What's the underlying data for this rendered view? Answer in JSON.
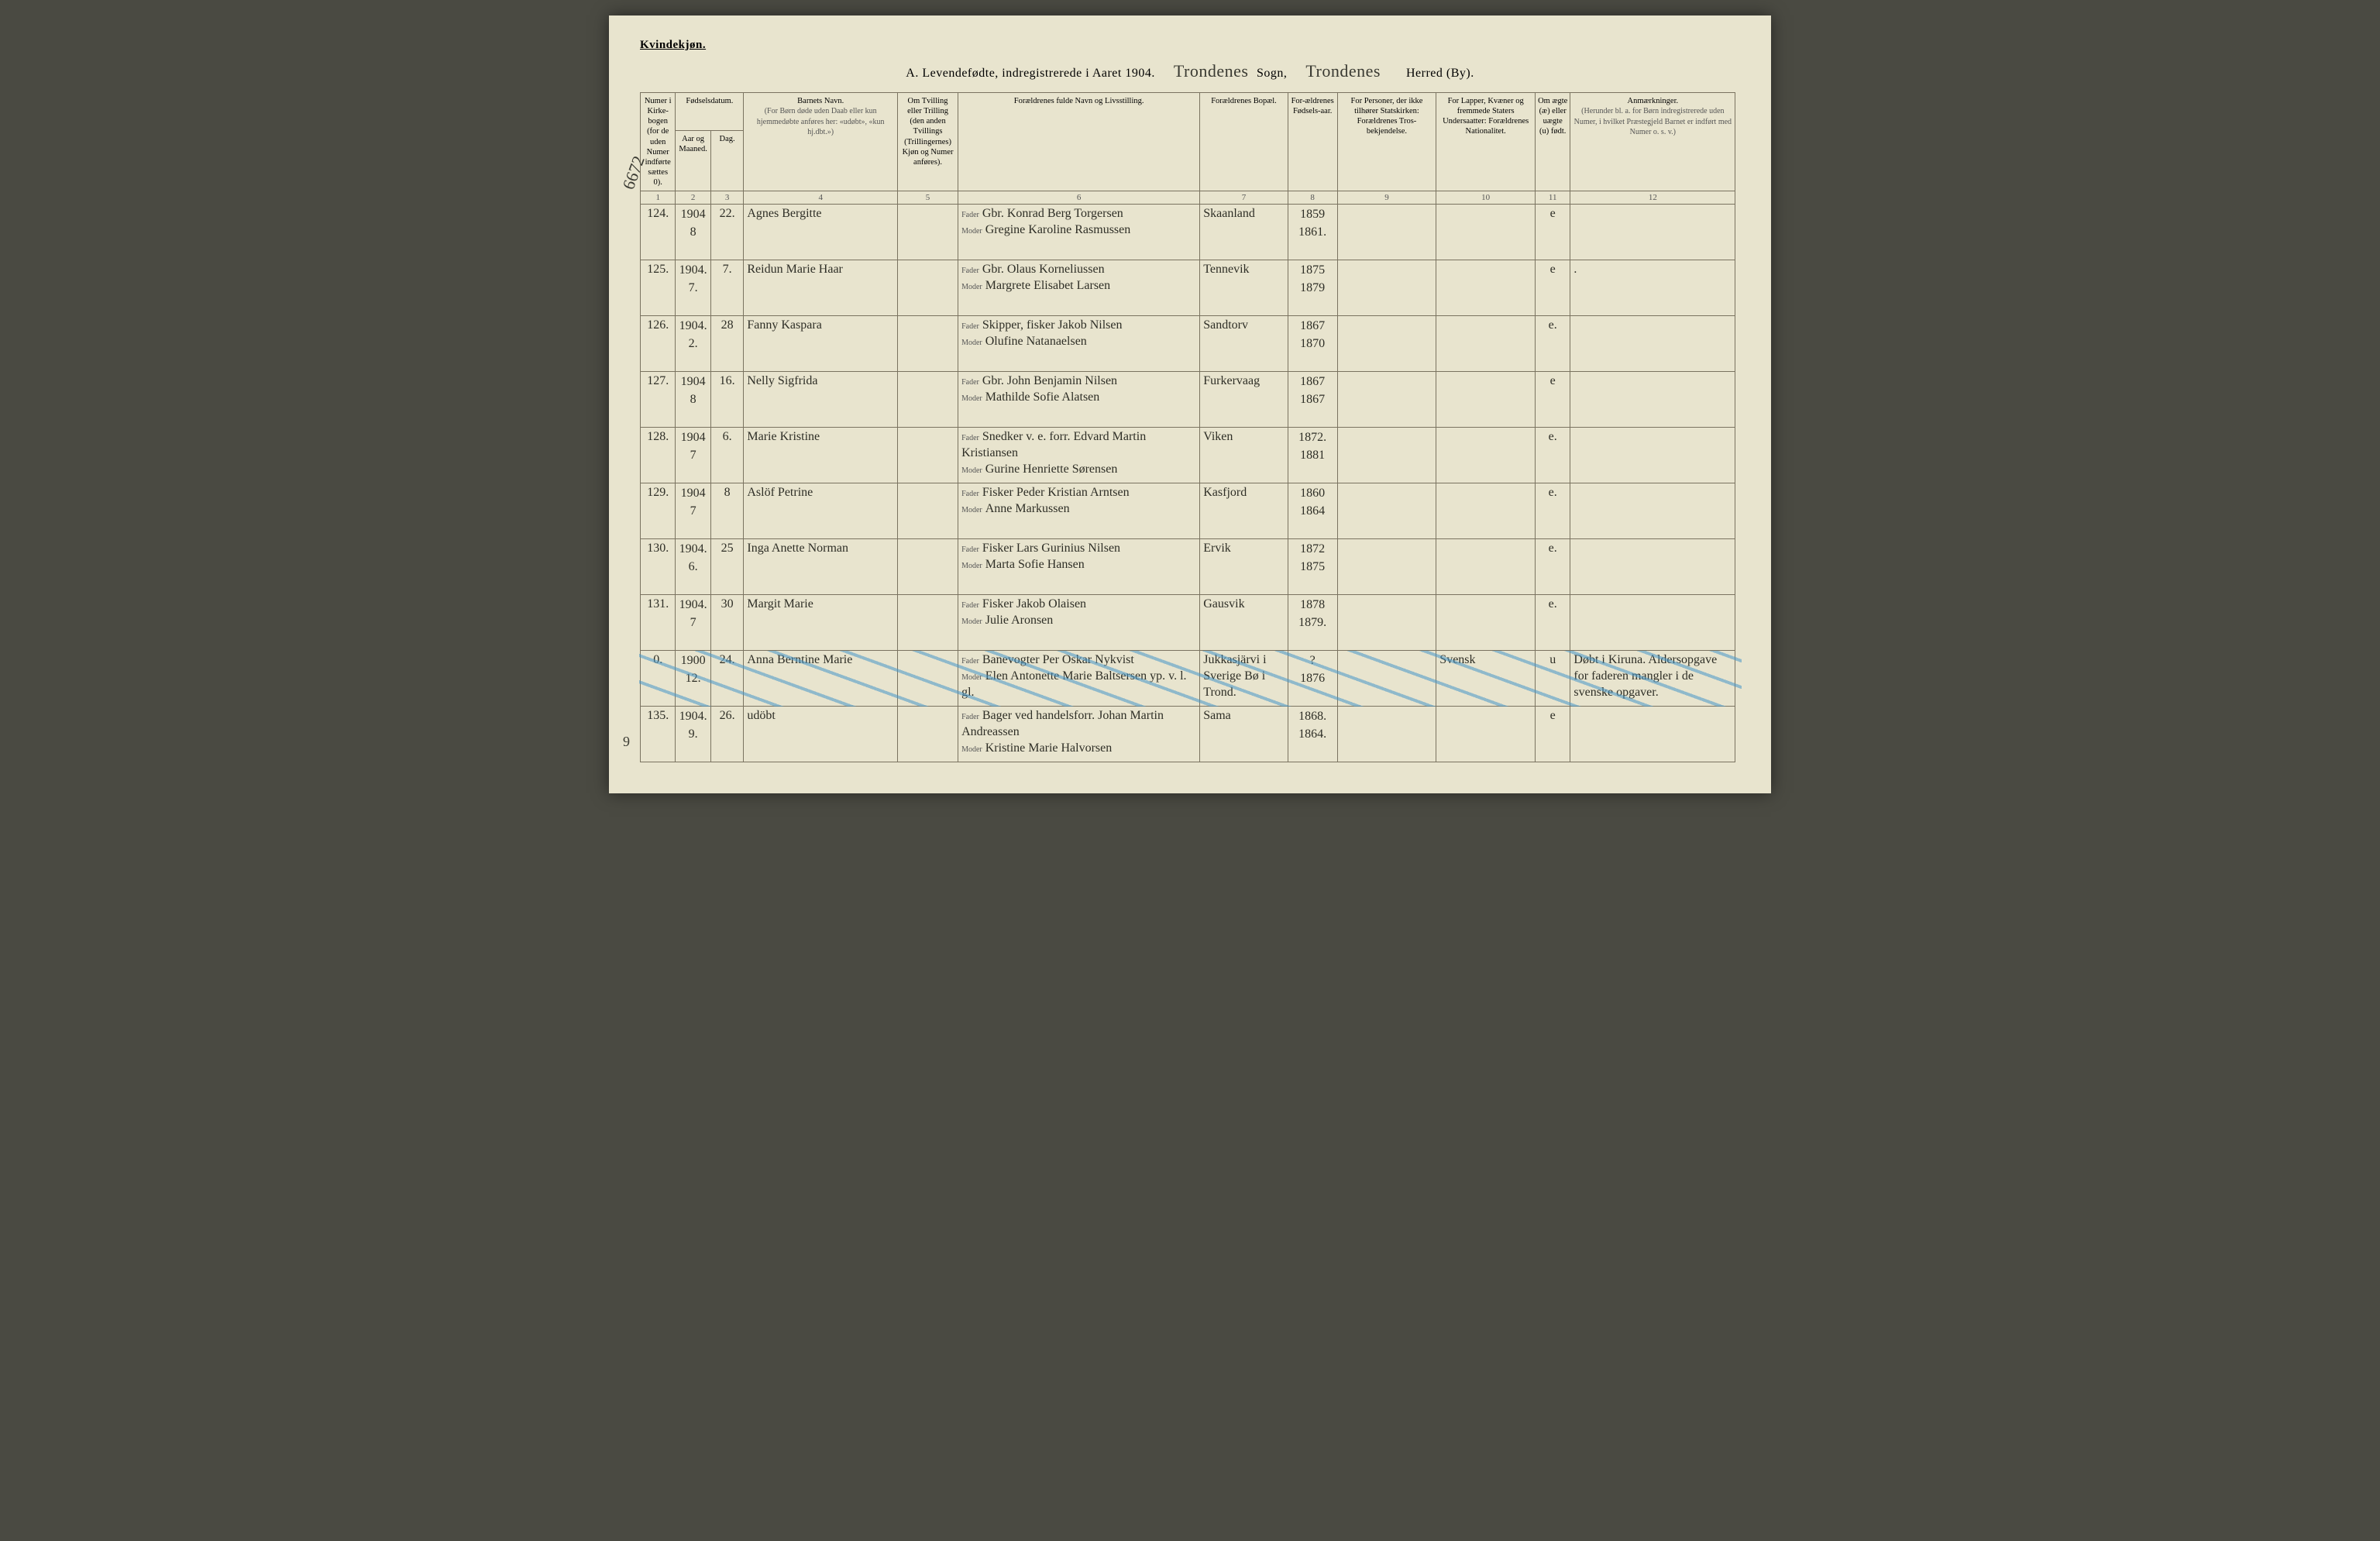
{
  "header": {
    "gender_label": "Kvindekjøn.",
    "title_prefix": "A.  Levendefødte, indregistrerede i Aaret 190",
    "year_suffix": "4.",
    "sogn_script": "Trondenes",
    "sogn_label": "Sogn,",
    "herred_script": "Trondenes",
    "herred_label": "Herred (By)."
  },
  "margin": {
    "top_note": "6672",
    "bottom_note": "9"
  },
  "columns": {
    "c1": "Numer i Kirke-bogen (for de uden Numer indførte sættes 0).",
    "c2": "Fødselsdatum.",
    "c2a": "Aar og Maaned.",
    "c2b": "Dag.",
    "c4": "Barnets Navn.",
    "c4sub": "(For Børn døde uden Daab eller kun hjemmedøbte anføres her: «udøbt», «kun hj.dbt.»)",
    "c5": "Om Tvilling eller Trilling (den anden Tvillings (Trillingernes) Kjøn og Numer anføres).",
    "c6": "Forældrenes fulde Navn og Livsstilling.",
    "c7": "Forældrenes Bopæl.",
    "c8": "For-ældrenes Fødsels-aar.",
    "c9": "For Personer, der ikke tilhører Statskirken: Forældrenes Tros-bekjendelse.",
    "c10": "For Lapper, Kvæner og fremmede Staters Undersaatter: Forældrenes Nationalitet.",
    "c11": "Om ægte (æ) eller uægte (u) født.",
    "c12": "Anmærkninger.",
    "c12sub": "(Herunder bl. a. for Børn indregistrerede uden Numer, i hvilket Præstegjeld Barnet er indført med Numer o. s. v.)",
    "fader": "Fader",
    "moder": "Moder"
  },
  "colnums": [
    "1",
    "2",
    "3",
    "4",
    "5",
    "6",
    "7",
    "8",
    "9",
    "10",
    "11",
    "12"
  ],
  "rows": [
    {
      "num": "124.",
      "year_month": "1904\n8",
      "day": "22.",
      "child": "Agnes Bergitte",
      "twin": "",
      "father": "Gbr. Konrad Berg Torgersen",
      "mother": "Gregine Karoline Rasmussen",
      "residence": "Skaanland",
      "parent_years": "1859\n1861.",
      "religion": "",
      "nationality": "",
      "legit": "e",
      "remarks": ""
    },
    {
      "num": "125.",
      "year_month": "1904.\n7.",
      "day": "7.",
      "child": "Reidun Marie Haar",
      "twin": "",
      "father": "Gbr. Olaus Korneliussen",
      "mother": "Margrete Elisabet Larsen",
      "residence": "Tennevik",
      "parent_years": "1875\n1879",
      "religion": "",
      "nationality": "",
      "legit": "e",
      "remarks": "."
    },
    {
      "num": "126.",
      "year_month": "1904.\n2.",
      "day": "28",
      "child": "Fanny Kaspara",
      "twin": "",
      "father": "Skipper, fisker Jakob Nilsen",
      "mother": "Olufine Natanaelsen",
      "residence": "Sandtorv",
      "parent_years": "1867\n1870",
      "religion": "",
      "nationality": "",
      "legit": "e.",
      "remarks": ""
    },
    {
      "num": "127.",
      "year_month": "1904\n8",
      "day": "16.",
      "child": "Nelly Sigfrida",
      "twin": "",
      "father": "Gbr. John Benjamin Nilsen",
      "mother": "Mathilde Sofie Alatsen",
      "residence": "Furkervaag",
      "parent_years": "1867\n1867",
      "religion": "",
      "nationality": "",
      "legit": "e",
      "remarks": ""
    },
    {
      "num": "128.",
      "year_month": "1904\n7",
      "day": "6.",
      "child": "Marie Kristine",
      "twin": "",
      "father": "Snedker v. e. forr. Edvard Martin Kristiansen",
      "mother": "Gurine Henriette Sørensen",
      "residence": "Viken",
      "parent_years": "1872.\n1881",
      "religion": "",
      "nationality": "",
      "legit": "e.",
      "remarks": ""
    },
    {
      "num": "129.",
      "year_month": "1904\n7",
      "day": "8",
      "child": "Aslöf Petrine",
      "twin": "",
      "father": "Fisker Peder Kristian Arntsen",
      "mother": "Anne Markussen",
      "residence": "Kasfjord",
      "parent_years": "1860\n1864",
      "religion": "",
      "nationality": "",
      "legit": "e.",
      "remarks": ""
    },
    {
      "num": "130.",
      "year_month": "1904.\n6.",
      "day": "25",
      "child": "Inga Anette Norman",
      "twin": "",
      "father": "Fisker Lars Gurinius Nilsen",
      "mother": "Marta Sofie Hansen",
      "residence": "Ervik",
      "parent_years": "1872\n1875",
      "religion": "",
      "nationality": "",
      "legit": "e.",
      "remarks": ""
    },
    {
      "num": "131.",
      "year_month": "1904.\n7",
      "day": "30",
      "child": "Margit Marie",
      "twin": "",
      "father": "Fisker Jakob Olaisen",
      "mother": "Julie Aronsen",
      "residence": "Gausvik",
      "parent_years": "1878\n1879.",
      "religion": "",
      "nationality": "",
      "legit": "e.",
      "remarks": ""
    },
    {
      "num": "0.",
      "year_month": "1900\n12.",
      "day": "24.",
      "child": "Anna Berntine Marie",
      "twin": "",
      "father": "Banevogter Per Oskar Nykvist",
      "mother": "Elen Antonette Marie Baltsersen yp. v. l. gl.",
      "residence": "Jukkasjärvi i Sverige  Bø i Trond.",
      "parent_years": "?\n1876",
      "religion": "",
      "nationality": "Svensk",
      "legit": "u",
      "remarks": "Døbt i Kiruna. Aldersopgave for faderen mangler i de svenske opgaver.",
      "crossed": true
    },
    {
      "num": "135.",
      "year_month": "1904.\n9.",
      "day": "26.",
      "child": "udöbt",
      "twin": "",
      "father": "Bager ved handelsforr. Johan Martin Andreassen",
      "mother": "Kristine Marie Halvorsen",
      "residence": "Sama",
      "parent_years": "1868.\n1864.",
      "religion": "",
      "nationality": "",
      "legit": "e",
      "remarks": ""
    }
  ]
}
